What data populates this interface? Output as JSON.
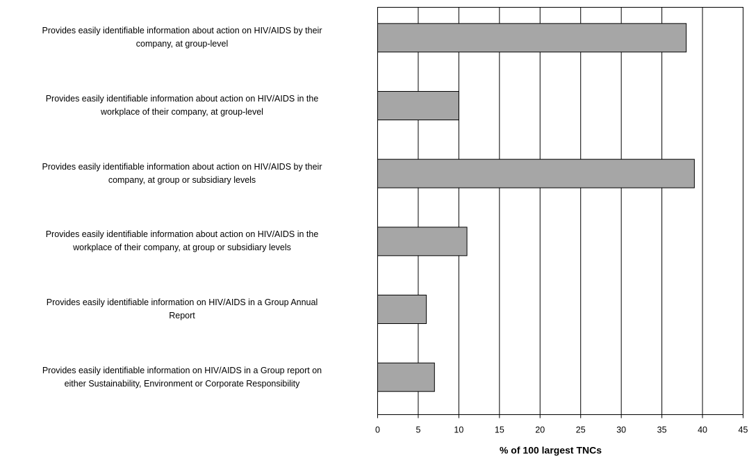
{
  "chart_data": {
    "type": "bar",
    "orientation": "horizontal",
    "categories": [
      [
        "Provides easily identifiable information about action on HIV/AIDS by their",
        "company, at group-level"
      ],
      [
        "Provides easily identifiable information about action on HIV/AIDS in the",
        "workplace of their company, at group-level"
      ],
      [
        "Provides easily identifiable information about action on HIV/AIDS by their",
        "company, at group or subsidiary levels"
      ],
      [
        "Provides easily identifiable information about action on HIV/AIDS in the",
        "workplace of their company, at group or subsidiary levels"
      ],
      [
        "Provides easily identifiable information on HIV/AIDS in a Group Annual",
        "Report"
      ],
      [
        "Provides easily identifiable information on HIV/AIDS in a Group report on",
        "either Sustainability, Environment or Corporate Responsibility"
      ]
    ],
    "values": [
      38,
      10,
      39,
      11,
      6,
      7
    ],
    "xlabel": "% of 100 largest TNCs",
    "xlim": [
      0,
      45
    ],
    "xticks": [
      0,
      5,
      10,
      15,
      20,
      25,
      30,
      35,
      40,
      45
    ],
    "grid": true,
    "bar_color": "#a6a6a6"
  }
}
